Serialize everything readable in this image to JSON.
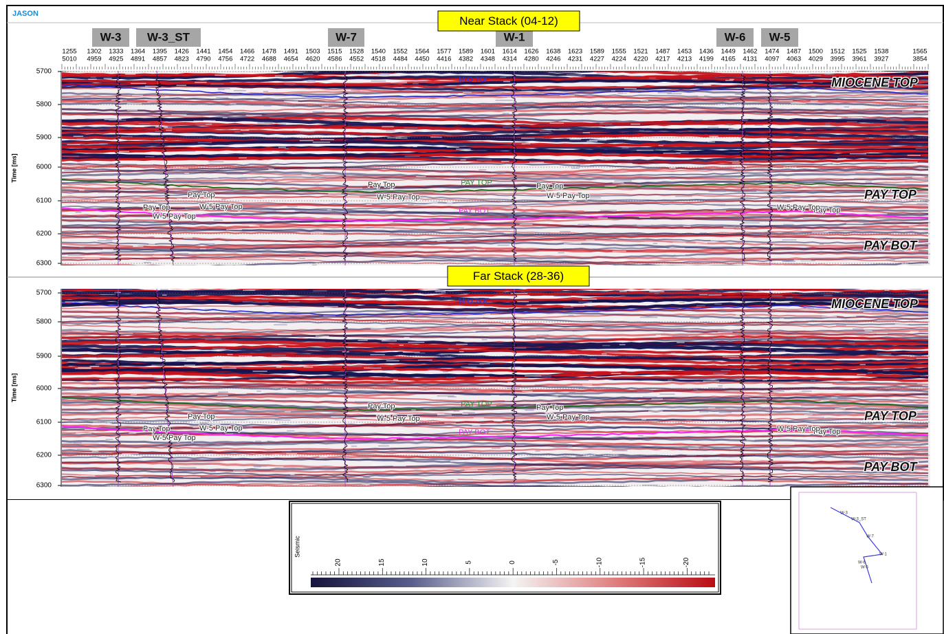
{
  "brand": "JASON",
  "wells": [
    "W-3",
    "W-3_ST",
    "W-7",
    "W-1",
    "W-6",
    "W-5"
  ],
  "trace_header": {
    "row1": [
      "1255",
      "1302",
      "1333",
      "1364",
      "1395",
      "1426",
      "1441",
      "1454",
      "1466",
      "1478",
      "1491",
      "1503",
      "1515",
      "1528",
      "1540",
      "1552",
      "1564",
      "1577",
      "1589",
      "1601",
      "1614",
      "1626",
      "1638",
      "1623",
      "1589",
      "1555",
      "1521",
      "1487",
      "1453",
      "1436",
      "1449",
      "1462",
      "1474",
      "1487",
      "1500",
      "1512",
      "1525",
      "1538",
      "1565"
    ],
    "row2": [
      "5010",
      "4959",
      "4925",
      "4891",
      "4857",
      "4823",
      "4790",
      "4756",
      "4722",
      "4688",
      "4654",
      "4620",
      "4586",
      "4552",
      "4518",
      "4484",
      "4450",
      "4416",
      "4382",
      "4348",
      "4314",
      "4280",
      "4246",
      "4231",
      "4227",
      "4224",
      "4220",
      "4217",
      "4213",
      "4199",
      "4165",
      "4131",
      "4097",
      "4063",
      "4029",
      "3995",
      "3961",
      "3927",
      "3854"
    ]
  },
  "panels": [
    {
      "title": "Near Stack (04-12)",
      "y_label": "Time [ms]",
      "time_ticks": [
        "5700",
        "5800",
        "5900",
        "6000",
        "6100",
        "6200",
        "6300"
      ],
      "annotations": [
        "MIO TOP",
        "MIOCENE TOP",
        "PAY TOP",
        "PAY TOP",
        "PAY BOT",
        "PAY BOT",
        "Pay Top",
        "W-5 Pay Top",
        "Pay Top",
        "W-5 Pay Top",
        "Pay Top",
        "W-5 Pay Top",
        "Pay Top",
        "W-5 Pay Top",
        "Pay Top",
        "W-5 Pay Top"
      ]
    },
    {
      "title": "Far Stack (28-36)",
      "y_label": "Time [ms]",
      "time_ticks": [
        "5700",
        "5800",
        "5900",
        "6000",
        "6100",
        "6200",
        "6300"
      ],
      "annotations": [
        "MIO TOP",
        "MIOCENE TOP",
        "PAY TOP",
        "PAY TOP",
        "PAY BOT",
        "PAY BOT",
        "Pay Top",
        "W-5 Pay Top",
        "Pay Top",
        "W-5 Pay Top",
        "Pay Top",
        "W-5 Pay Top",
        "Pay Top",
        "W-5 Pay Top",
        "Pay Top",
        "W-5 Pay Top"
      ]
    }
  ],
  "colorbar": {
    "label": "Seismic",
    "ticks": [
      "20",
      "15",
      "10",
      "5",
      "0",
      "-5",
      "-10",
      "-15",
      "-20"
    ]
  }
}
